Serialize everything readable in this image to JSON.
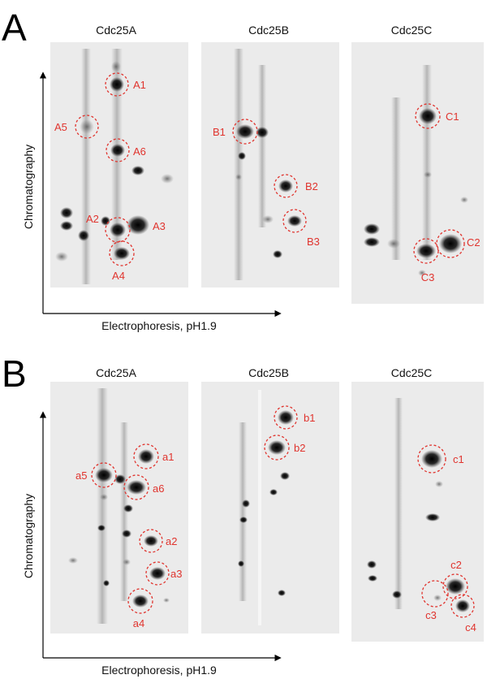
{
  "panels": [
    {
      "letter": "A",
      "columns": [
        {
          "title": "Cdc25A",
          "spots": [
            {
              "label": "A1",
              "side": "right"
            },
            {
              "label": "A5",
              "side": "left"
            },
            {
              "label": "A6",
              "side": "right"
            },
            {
              "label": "A2",
              "side": "left"
            },
            {
              "label": "A3",
              "side": "right"
            },
            {
              "label": "A4",
              "side": "below"
            }
          ]
        },
        {
          "title": "Cdc25B",
          "spots": [
            {
              "label": "B1",
              "side": "left"
            },
            {
              "label": "B2",
              "side": "right"
            },
            {
              "label": "B3",
              "side": "below-right"
            }
          ]
        },
        {
          "title": "Cdc25C",
          "spots": [
            {
              "label": "C1",
              "side": "right"
            },
            {
              "label": "C2",
              "side": "right"
            },
            {
              "label": "C3",
              "side": "below"
            }
          ]
        }
      ],
      "y_axis_label": "Chromatography",
      "x_axis_label": "Electrophoresis, pH1.9"
    },
    {
      "letter": "B",
      "columns": [
        {
          "title": "Cdc25A",
          "spots": [
            {
              "label": "a1",
              "side": "right"
            },
            {
              "label": "a5",
              "side": "left"
            },
            {
              "label": "a6",
              "side": "right"
            },
            {
              "label": "a2",
              "side": "right"
            },
            {
              "label": "a3",
              "side": "right"
            },
            {
              "label": "a4",
              "side": "below"
            }
          ]
        },
        {
          "title": "Cdc25B",
          "spots": [
            {
              "label": "b1",
              "side": "right"
            },
            {
              "label": "b2",
              "side": "right"
            }
          ]
        },
        {
          "title": "Cdc25C",
          "spots": [
            {
              "label": "c1",
              "side": "right"
            },
            {
              "label": "c2",
              "side": "above"
            },
            {
              "label": "c3",
              "side": "below"
            },
            {
              "label": "c4",
              "side": "below"
            }
          ]
        }
      ],
      "y_axis_label": "Chromatography",
      "x_axis_label": "Electrophoresis, pH1.9"
    }
  ],
  "colors": {
    "annotation": "#e0342e",
    "gel_background": "#ebebeb",
    "axis": "#000000"
  }
}
